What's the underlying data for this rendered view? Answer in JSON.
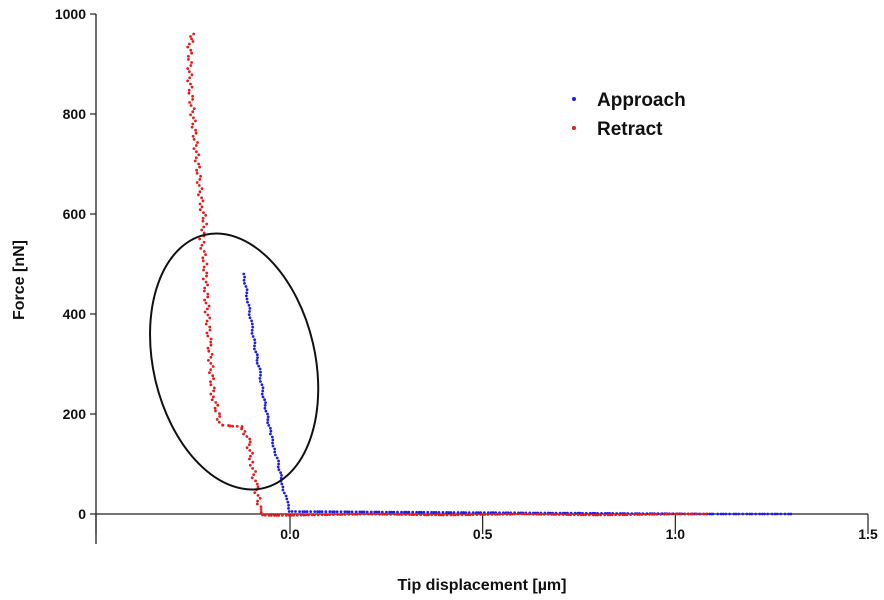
{
  "chart_data": {
    "type": "scatter",
    "title": "",
    "xlabel": "Tip displacement [µm]",
    "ylabel": "Force [nN]",
    "xlim": [
      -0.5,
      1.5
    ],
    "ylim": [
      -60,
      1000
    ],
    "x_ticks": [
      0.0,
      0.5,
      1.0,
      1.5
    ],
    "x_tick_labels": [
      "0.0",
      "0.5",
      "1.0",
      "1.5"
    ],
    "y_ticks": [
      0,
      200,
      400,
      600,
      800,
      1000
    ],
    "y_tick_labels": [
      "0",
      "200",
      "400",
      "600",
      "800",
      "1000"
    ],
    "grid": false,
    "legend_position": "top-right",
    "series": [
      {
        "name": "Approach",
        "color": "#1f1fe6",
        "points": [
          [
            1.3,
            0
          ],
          [
            1.25,
            0
          ],
          [
            1.2,
            0
          ],
          [
            1.15,
            0
          ],
          [
            1.1,
            0
          ],
          [
            1.08,
            0
          ],
          [
            0.0,
            5
          ],
          [
            -0.01,
            30
          ],
          [
            -0.02,
            60
          ],
          [
            -0.03,
            100
          ],
          [
            -0.04,
            130
          ],
          [
            -0.05,
            160
          ],
          [
            -0.06,
            200
          ],
          [
            -0.07,
            240
          ],
          [
            -0.08,
            290
          ],
          [
            -0.09,
            330
          ],
          [
            -0.1,
            380
          ],
          [
            -0.11,
            430
          ],
          [
            -0.12,
            480
          ]
        ]
      },
      {
        "name": "Retract",
        "color": "#e81a1a",
        "points": [
          [
            1.08,
            0
          ],
          [
            1.0,
            0
          ],
          [
            0.8,
            -2
          ],
          [
            0.6,
            0
          ],
          [
            0.4,
            -2
          ],
          [
            0.2,
            0
          ],
          [
            0.05,
            -2
          ],
          [
            -0.05,
            -3
          ],
          [
            -0.07,
            -2
          ],
          [
            -0.08,
            20
          ],
          [
            -0.09,
            60
          ],
          [
            -0.1,
            110
          ],
          [
            -0.11,
            150
          ],
          [
            -0.12,
            170
          ],
          [
            -0.13,
            175
          ],
          [
            -0.15,
            176
          ],
          [
            -0.18,
            178
          ],
          [
            -0.2,
            240
          ],
          [
            -0.21,
            350
          ],
          [
            -0.22,
            470
          ],
          [
            -0.22,
            500
          ],
          [
            -0.23,
            550
          ],
          [
            -0.22,
            580
          ],
          [
            -0.23,
            620
          ],
          [
            -0.24,
            700
          ],
          [
            -0.25,
            780
          ],
          [
            -0.26,
            860
          ],
          [
            -0.26,
            940
          ],
          [
            -0.25,
            960
          ]
        ]
      }
    ],
    "annotations": [
      {
        "type": "ellipse",
        "cx": -0.145,
        "cy": 305,
        "rx": 0.21,
        "ry": 260
      }
    ]
  }
}
